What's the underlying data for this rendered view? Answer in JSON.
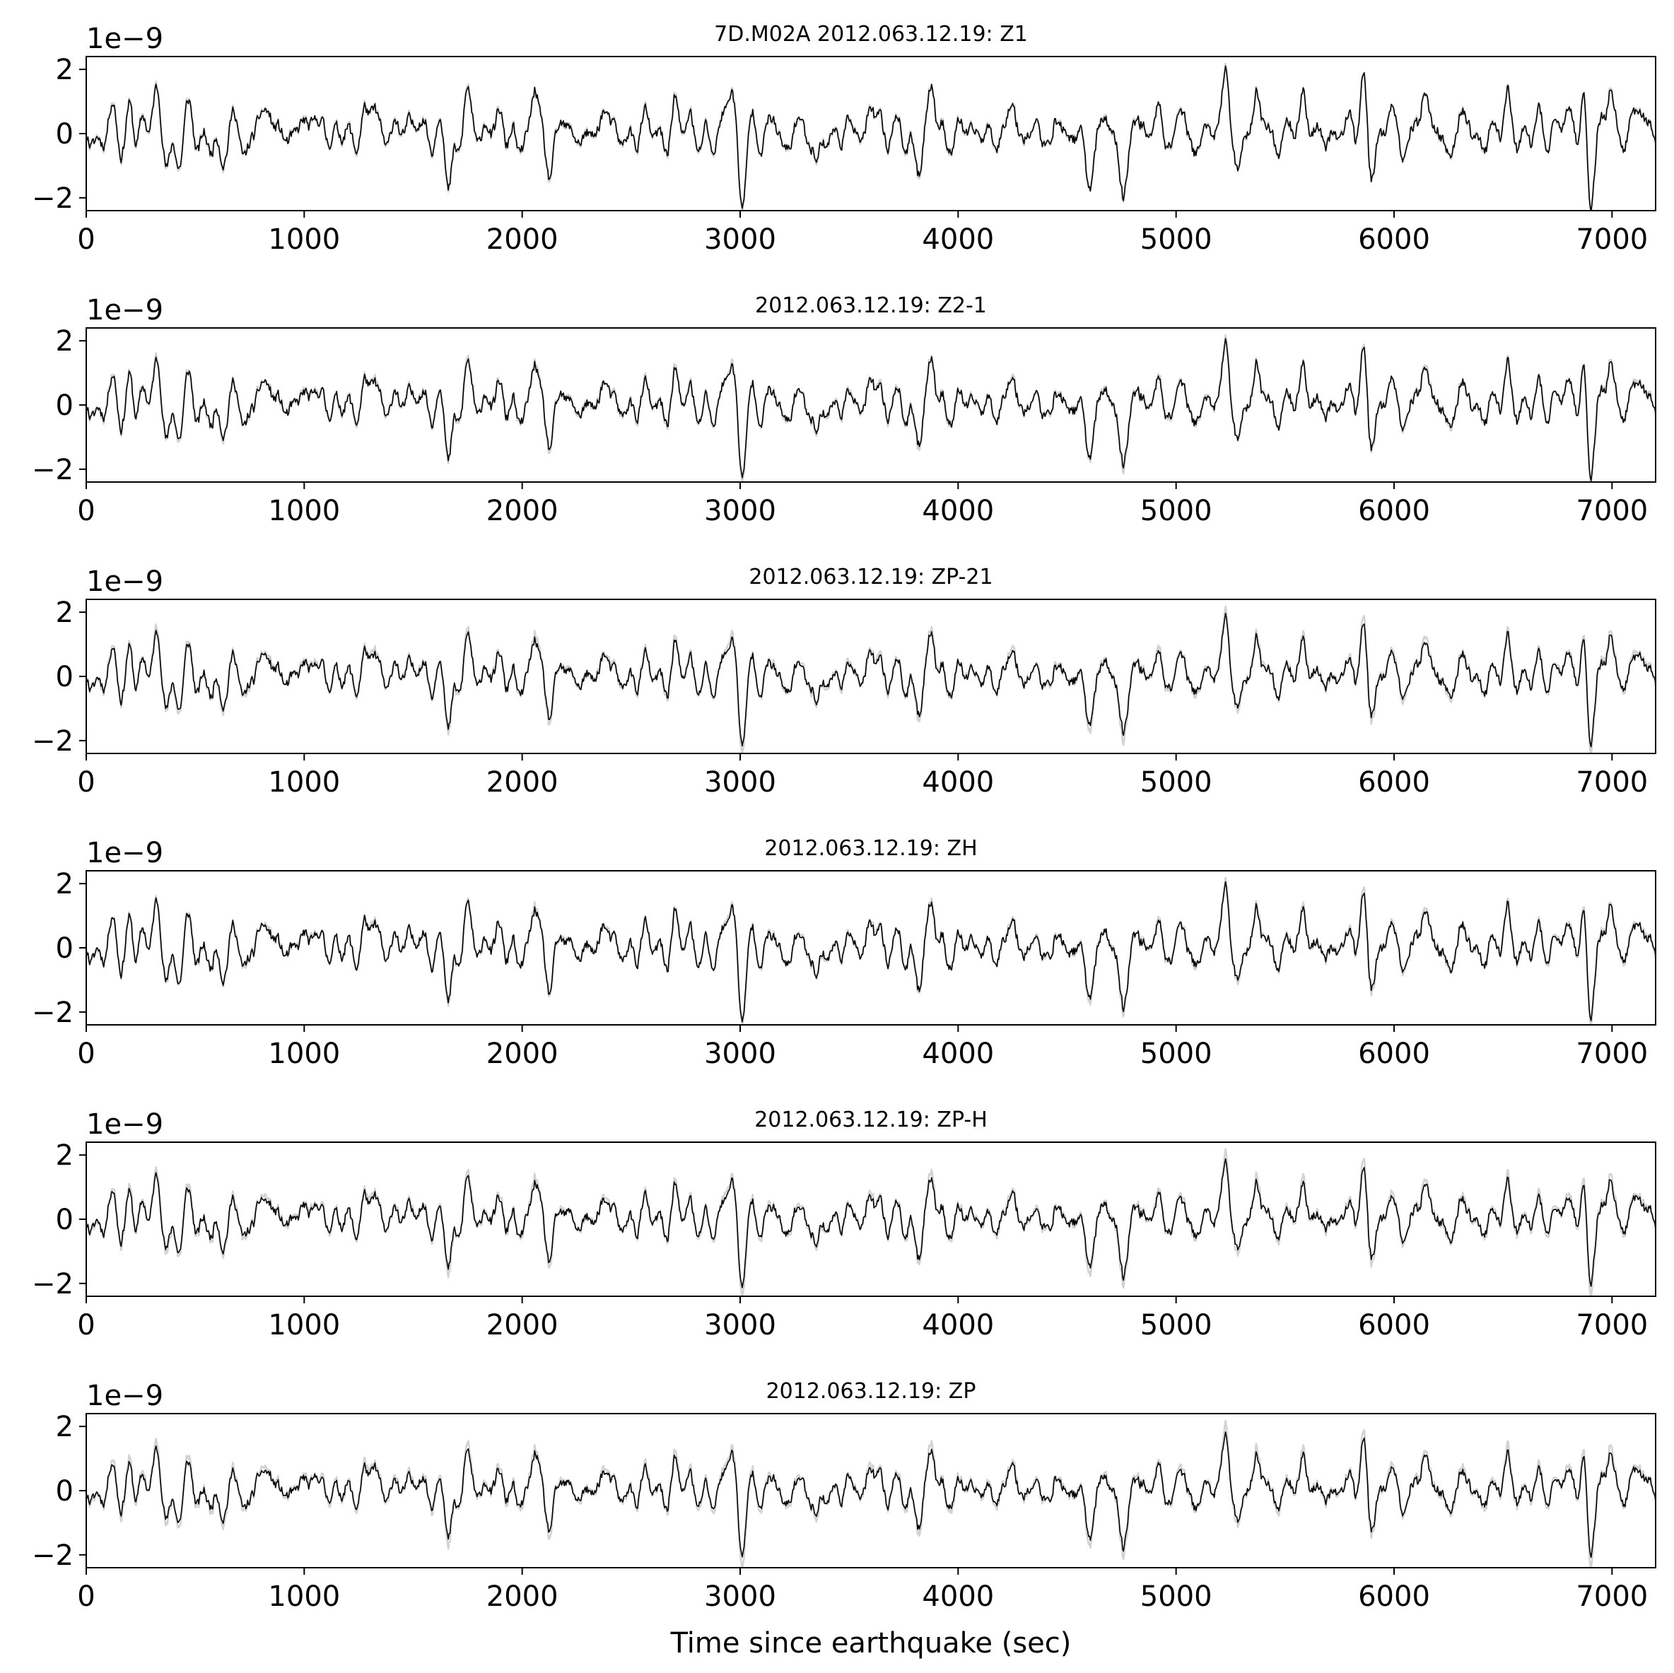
{
  "chart_data": [
    {
      "type": "line",
      "title": "7D.M02A 2012.063.12.19: Z1",
      "offset_text": "1e−9",
      "xlabel": "",
      "xlim": [
        0,
        7200
      ],
      "ylim": [
        -2.4,
        2.4
      ],
      "xticks": [
        0,
        1000,
        2000,
        3000,
        4000,
        5000,
        6000,
        7000
      ],
      "yticks": [
        -2,
        0,
        2
      ],
      "xtick_labels": [
        "0",
        "1000",
        "2000",
        "3000",
        "4000",
        "5000",
        "6000",
        "7000"
      ],
      "ytick_labels": [
        "−2",
        "0",
        "2"
      ],
      "series": [
        {
          "role": "original",
          "color": "#d3d3d3",
          "seed": 11,
          "shrink": 1.0
        },
        {
          "role": "corrected",
          "color": "#000000",
          "seed": 11,
          "shrink": 0.98
        }
      ]
    },
    {
      "type": "line",
      "title": "2012.063.12.19: Z2-1",
      "offset_text": "1e−9",
      "xlabel": "",
      "xlim": [
        0,
        7200
      ],
      "ylim": [
        -2.4,
        2.4
      ],
      "xticks": [
        0,
        1000,
        2000,
        3000,
        4000,
        5000,
        6000,
        7000
      ],
      "yticks": [
        -2,
        0,
        2
      ],
      "xtick_labels": [
        "0",
        "1000",
        "2000",
        "3000",
        "4000",
        "5000",
        "6000",
        "7000"
      ],
      "ytick_labels": [
        "−2",
        "0",
        "2"
      ],
      "series": [
        {
          "role": "original",
          "color": "#d3d3d3",
          "seed": 11,
          "shrink": 1.0
        },
        {
          "role": "corrected",
          "color": "#000000",
          "seed": 11,
          "shrink": 0.94
        }
      ]
    },
    {
      "type": "line",
      "title": "2012.063.12.19: ZP-21",
      "offset_text": "1e−9",
      "xlabel": "",
      "xlim": [
        0,
        7200
      ],
      "ylim": [
        -2.4,
        2.4
      ],
      "xticks": [
        0,
        1000,
        2000,
        3000,
        4000,
        5000,
        6000,
        7000
      ],
      "yticks": [
        -2,
        0,
        2
      ],
      "xtick_labels": [
        "0",
        "1000",
        "2000",
        "3000",
        "4000",
        "5000",
        "6000",
        "7000"
      ],
      "ytick_labels": [
        "−2",
        "0",
        "2"
      ],
      "series": [
        {
          "role": "original",
          "color": "#d3d3d3",
          "seed": 11,
          "shrink": 1.0
        },
        {
          "role": "corrected",
          "color": "#000000",
          "seed": 11,
          "shrink": 0.88
        }
      ]
    },
    {
      "type": "line",
      "title": "2012.063.12.19: ZH",
      "offset_text": "1e−9",
      "xlabel": "",
      "xlim": [
        0,
        7200
      ],
      "ylim": [
        -2.4,
        2.4
      ],
      "xticks": [
        0,
        1000,
        2000,
        3000,
        4000,
        5000,
        6000,
        7000
      ],
      "yticks": [
        -2,
        0,
        2
      ],
      "xtick_labels": [
        "0",
        "1000",
        "2000",
        "3000",
        "4000",
        "5000",
        "6000",
        "7000"
      ],
      "ytick_labels": [
        "−2",
        "0",
        "2"
      ],
      "series": [
        {
          "role": "original",
          "color": "#d3d3d3",
          "seed": 11,
          "shrink": 1.0
        },
        {
          "role": "corrected",
          "color": "#000000",
          "seed": 11,
          "shrink": 0.93
        }
      ]
    },
    {
      "type": "line",
      "title": "2012.063.12.19: ZP-H",
      "offset_text": "1e−9",
      "xlabel": "",
      "xlim": [
        0,
        7200
      ],
      "ylim": [
        -2.4,
        2.4
      ],
      "xticks": [
        0,
        1000,
        2000,
        3000,
        4000,
        5000,
        6000,
        7000
      ],
      "yticks": [
        -2,
        0,
        2
      ],
      "xtick_labels": [
        "0",
        "1000",
        "2000",
        "3000",
        "4000",
        "5000",
        "6000",
        "7000"
      ],
      "ytick_labels": [
        "−2",
        "0",
        "2"
      ],
      "series": [
        {
          "role": "original",
          "color": "#d3d3d3",
          "seed": 11,
          "shrink": 1.0
        },
        {
          "role": "corrected",
          "color": "#000000",
          "seed": 11,
          "shrink": 0.87
        }
      ]
    },
    {
      "type": "line",
      "title": "2012.063.12.19: ZP",
      "offset_text": "1e−9",
      "xlabel": "Time since earthquake (sec)",
      "xlim": [
        0,
        7200
      ],
      "ylim": [
        -2.4,
        2.4
      ],
      "xticks": [
        0,
        1000,
        2000,
        3000,
        4000,
        5000,
        6000,
        7000
      ],
      "yticks": [
        -2,
        0,
        2
      ],
      "xtick_labels": [
        "0",
        "1000",
        "2000",
        "3000",
        "4000",
        "5000",
        "6000",
        "7000"
      ],
      "ytick_labels": [
        "−2",
        "0",
        "2"
      ],
      "series": [
        {
          "role": "original",
          "color": "#d3d3d3",
          "seed": 11,
          "shrink": 1.0
        },
        {
          "role": "corrected",
          "color": "#000000",
          "seed": 11,
          "shrink": 0.86
        }
      ]
    }
  ],
  "waveform_features": [
    {
      "t": 200,
      "a": 0.9
    },
    {
      "t": 310,
      "a": 0.8
    },
    {
      "t": 420,
      "a": -0.9
    },
    {
      "t": 620,
      "a": -1.1
    },
    {
      "t": 840,
      "a": 0.9
    },
    {
      "t": 1040,
      "a": 0.8
    },
    {
      "t": 1320,
      "a": 1.2
    },
    {
      "t": 1520,
      "a": 0.9
    },
    {
      "t": 1660,
      "a": -1.8
    },
    {
      "t": 1740,
      "a": 1.0
    },
    {
      "t": 1900,
      "a": 0.9
    },
    {
      "t": 1980,
      "a": -1.0
    },
    {
      "t": 2060,
      "a": 1.7
    },
    {
      "t": 2120,
      "a": -1.3
    },
    {
      "t": 2380,
      "a": 0.6
    },
    {
      "t": 2700,
      "a": 0.8
    },
    {
      "t": 2960,
      "a": 1.2
    },
    {
      "t": 3010,
      "a": -1.5
    },
    {
      "t": 3350,
      "a": -0.9
    },
    {
      "t": 3600,
      "a": 1.1
    },
    {
      "t": 3820,
      "a": -1.2
    },
    {
      "t": 3880,
      "a": 1.5
    },
    {
      "t": 4250,
      "a": 1.0
    },
    {
      "t": 4600,
      "a": -1.5
    },
    {
      "t": 4760,
      "a": -1.5
    },
    {
      "t": 4920,
      "a": 1.0
    },
    {
      "t": 5230,
      "a": 1.6
    },
    {
      "t": 5290,
      "a": -0.9
    },
    {
      "t": 5370,
      "a": 1.2
    },
    {
      "t": 5580,
      "a": 1.2
    },
    {
      "t": 5860,
      "a": 2.0
    },
    {
      "t": 5890,
      "a": -1.3
    },
    {
      "t": 6140,
      "a": 1.1
    },
    {
      "t": 6520,
      "a": 0.9
    },
    {
      "t": 6770,
      "a": 0.8
    },
    {
      "t": 6870,
      "a": 1.4
    },
    {
      "t": 6900,
      "a": -2.1
    },
    {
      "t": 6990,
      "a": 1.5
    },
    {
      "t": 7120,
      "a": 0.9
    }
  ]
}
